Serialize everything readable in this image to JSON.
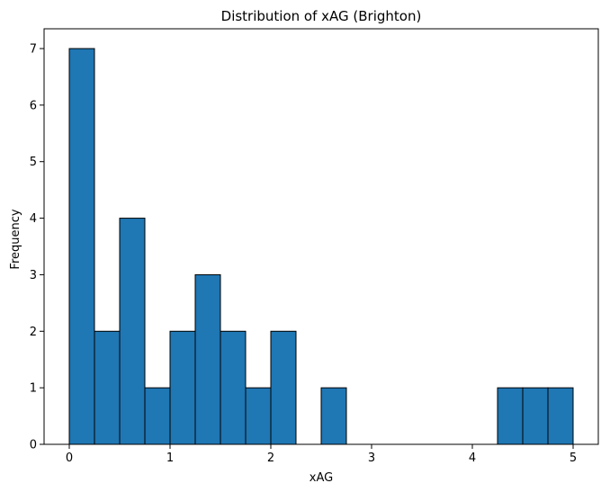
{
  "chart_data": {
    "type": "bar",
    "title": "Distribution of xAG (Brighton)",
    "xlabel": "xAG",
    "ylabel": "Frequency",
    "bin_edges": [
      0,
      0.25,
      0.5,
      0.75,
      1.0,
      1.25,
      1.5,
      1.75,
      2.0,
      2.25,
      2.5,
      2.75,
      3.0,
      3.25,
      3.5,
      3.75,
      4.0,
      4.25,
      4.5,
      4.75,
      5.0
    ],
    "values": [
      7,
      2,
      4,
      1,
      2,
      3,
      2,
      1,
      2,
      0,
      1,
      0,
      0,
      0,
      0,
      0,
      0,
      1,
      1,
      1
    ],
    "xlim": [
      -0.25,
      5.25
    ],
    "ylim": [
      0,
      7.35
    ],
    "xticks": [
      0,
      1,
      2,
      3,
      4,
      5
    ],
    "yticks": [
      0,
      1,
      2,
      3,
      4,
      5,
      6,
      7
    ],
    "grid": false,
    "bar_color": "#1f77b4",
    "edge_color": "#000000"
  }
}
